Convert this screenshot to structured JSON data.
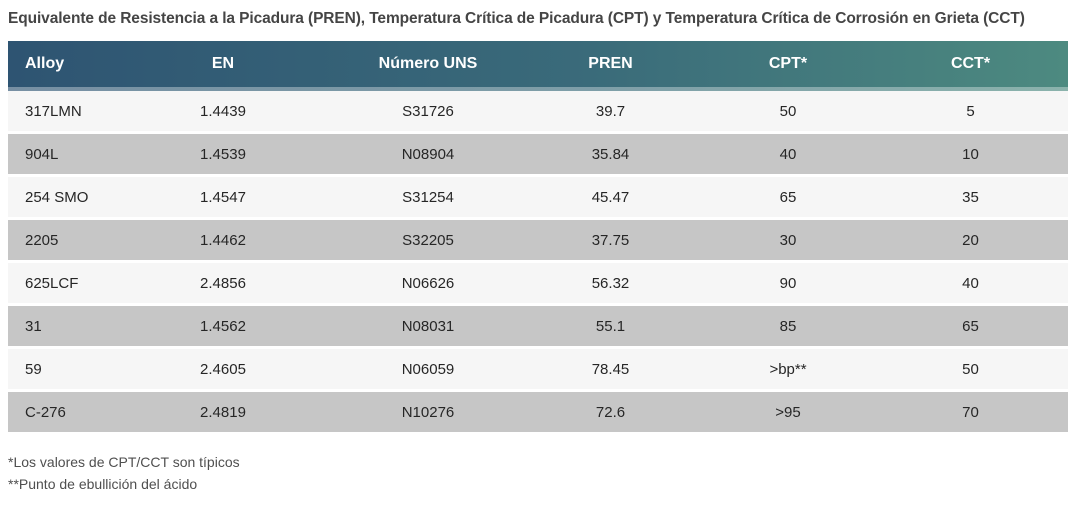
{
  "chart_data": {
    "type": "table",
    "title": "Equivalente de Resistencia a la Picadura (PREN), Temperatura Crítica de Picadura (CPT) y Temperatura Crítica de Corrosión en Grieta (CCT)",
    "columns": [
      "Alloy",
      "EN",
      "Número UNS",
      "PREN",
      "CPT*",
      "CCT*"
    ],
    "rows": [
      [
        "317LMN",
        "1.4439",
        "S31726",
        "39.7",
        "50",
        "5"
      ],
      [
        "904L",
        "1.4539",
        "N08904",
        "35.84",
        "40",
        "10"
      ],
      [
        "254 SMO",
        "1.4547",
        "S31254",
        "45.47",
        "65",
        "35"
      ],
      [
        "2205",
        "1.4462",
        "S32205",
        "37.75",
        "30",
        "20"
      ],
      [
        "625LCF",
        "2.4856",
        "N06626",
        "56.32",
        "90",
        "40"
      ],
      [
        "31",
        "1.4562",
        "N08031",
        "55.1",
        "85",
        "65"
      ],
      [
        "59",
        "2.4605",
        "N06059",
        "78.45",
        ">bp**",
        "50"
      ],
      [
        "C-276",
        "2.4819",
        "N10276",
        "72.6",
        ">95",
        "70"
      ]
    ],
    "footnotes": [
      "*Los valores de CPT/CCT son típicos",
      "**Punto de ebullición del ácido"
    ],
    "layout_hints": {
      "first_column_align": "left",
      "other_columns_align": "center",
      "row_striping": "light/dark alternating starting light"
    }
  },
  "colors": {
    "header_gradient_start": "#2e5472",
    "header_gradient_end": "#4d8a80",
    "header_text": "#ffffff",
    "row_light": "#f6f6f6",
    "row_dark": "#c6c6c6",
    "cell_text": "#262626",
    "title_text": "#454545",
    "footnote_text": "#4f4f4f",
    "page_background": "#ffffff"
  }
}
